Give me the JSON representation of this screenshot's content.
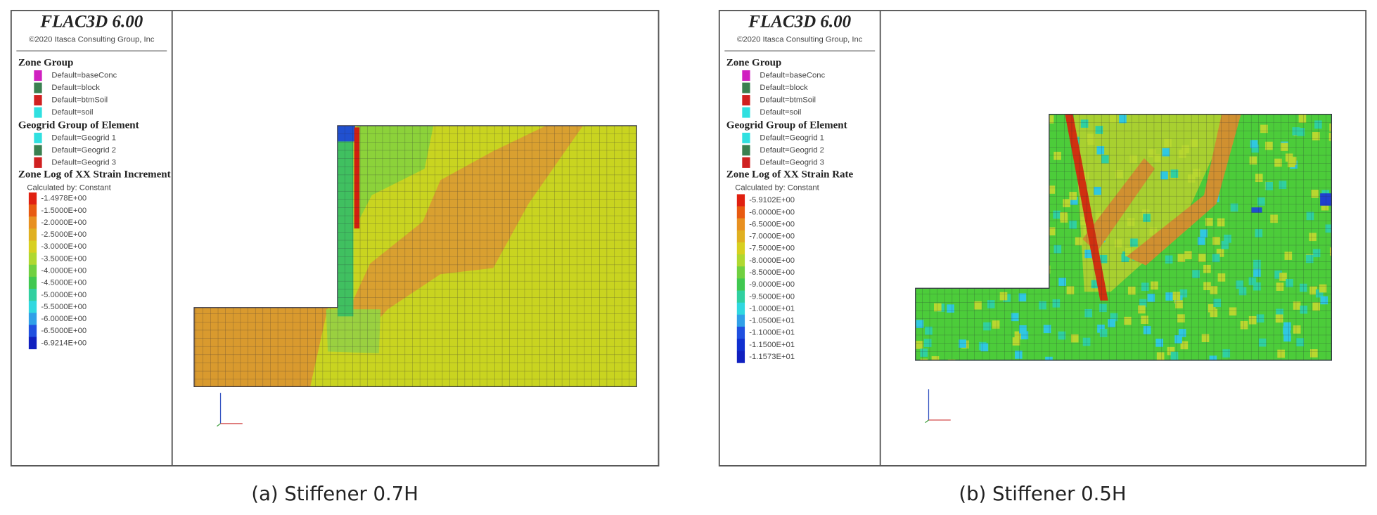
{
  "panels": [
    {
      "header": {
        "title": "FLAC3D 6.00",
        "copyright": "©2020 Itasca Consulting Group, Inc"
      },
      "zone_group": {
        "title": "Zone Group",
        "items": [
          {
            "label": "Default=baseConc",
            "color": "#d020c0"
          },
          {
            "label": "Default=block",
            "color": "#3a8050"
          },
          {
            "label": "Default=btmSoil",
            "color": "#d02020"
          },
          {
            "label": "Default=soil",
            "color": "#30e0e0"
          }
        ]
      },
      "geogrid_group": {
        "title": "Geogrid Group of Element",
        "items": [
          {
            "label": "Default=Geogrid 1",
            "color": "#30e0e0"
          },
          {
            "label": "Default=Geogrid 2",
            "color": "#3a8050"
          },
          {
            "label": "Default=Geogrid 3",
            "color": "#d02020"
          }
        ]
      },
      "contour": {
        "title": "Zone Log of XX Strain Increment",
        "subtitle": "Calculated by: Constant",
        "levels": [
          {
            "label": "-1.4978E+00",
            "color": "#e02010"
          },
          {
            "label": "-1.5000E+00",
            "color": "#e85a10"
          },
          {
            "label": "-2.0000E+00",
            "color": "#e89020"
          },
          {
            "label": "-2.5000E+00",
            "color": "#e0b020"
          },
          {
            "label": "-3.0000E+00",
            "color": "#d8d020"
          },
          {
            "label": "-3.5000E+00",
            "color": "#b0d830"
          },
          {
            "label": "-4.0000E+00",
            "color": "#70d040"
          },
          {
            "label": "-4.5000E+00",
            "color": "#40c850"
          },
          {
            "label": "-5.0000E+00",
            "color": "#30d0a0"
          },
          {
            "label": "-5.5000E+00",
            "color": "#30d8e0"
          },
          {
            "label": "-6.0000E+00",
            "color": "#30a0e8"
          },
          {
            "label": "-6.5000E+00",
            "color": "#2050e0"
          },
          {
            "label": "-6.9214E+00",
            "color": "#1020c0"
          }
        ]
      },
      "caption": "(a) Stiffener 0.7H"
    },
    {
      "header": {
        "title": "FLAC3D 6.00",
        "copyright": "©2020 Itasca Consulting Group, Inc"
      },
      "zone_group": {
        "title": "Zone Group",
        "items": [
          {
            "label": "Default=baseConc",
            "color": "#d020c0"
          },
          {
            "label": "Default=block",
            "color": "#3a8050"
          },
          {
            "label": "Default=btmSoil",
            "color": "#d02020"
          },
          {
            "label": "Default=soil",
            "color": "#30e0e0"
          }
        ]
      },
      "geogrid_group": {
        "title": "Geogrid Group of Element",
        "items": [
          {
            "label": "Default=Geogrid 1",
            "color": "#30e0e0"
          },
          {
            "label": "Default=Geogrid 2",
            "color": "#3a8050"
          },
          {
            "label": "Default=Geogrid 3",
            "color": "#d02020"
          }
        ]
      },
      "contour": {
        "title": "Zone Log of XX Strain Rate",
        "subtitle": "Calculated by: Constant",
        "levels": [
          {
            "label": "-5.9102E+00",
            "color": "#e02010"
          },
          {
            "label": "-6.0000E+00",
            "color": "#e85a10"
          },
          {
            "label": "-6.5000E+00",
            "color": "#e89020"
          },
          {
            "label": "-7.0000E+00",
            "color": "#e0b020"
          },
          {
            "label": "-7.5000E+00",
            "color": "#d8d020"
          },
          {
            "label": "-8.0000E+00",
            "color": "#b0d830"
          },
          {
            "label": "-8.5000E+00",
            "color": "#70d040"
          },
          {
            "label": "-9.0000E+00",
            "color": "#40c850"
          },
          {
            "label": "-9.5000E+00",
            "color": "#30d0a0"
          },
          {
            "label": "-1.0000E+01",
            "color": "#30d8e0"
          },
          {
            "label": "-1.0500E+01",
            "color": "#30a0e8"
          },
          {
            "label": "-1.1000E+01",
            "color": "#2050e0"
          },
          {
            "label": "-1.1500E+01",
            "color": "#1030d0"
          },
          {
            "label": "-1.1573E+01",
            "color": "#1020c0"
          }
        ]
      },
      "caption": "(b) Stiffener 0.5H"
    }
  ]
}
